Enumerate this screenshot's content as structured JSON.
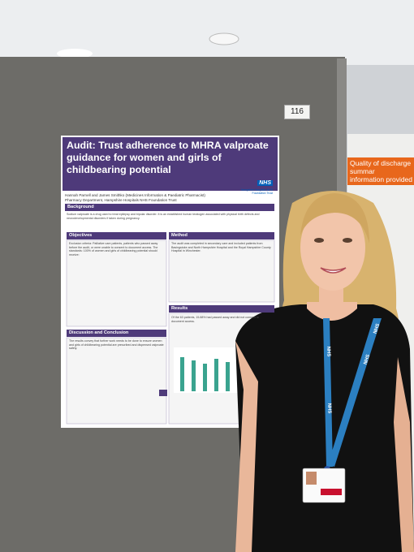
{
  "board_number": "116",
  "poster": {
    "title": "Audit: Trust adherence to MHRA valproate guidance for women and girls of childbearing potential",
    "authors": "Hannah Parnell and James Smithko (Medicines Information & Paediatric Pharmacist)",
    "affiliation": "Pharmacy Department, Hampshire Hospitals NHS Foundation Trust",
    "logo": {
      "mark": "NHS",
      "org": "Hampshire Hospitals NHS Foundation Trust"
    },
    "sections": [
      {
        "heading": "Background",
        "text": "Sodium valproate is a drug used to treat epilepsy and bipolar disorder. It is an established human teratogen associated with physical birth defects and neurodevelopmental disorders if taken during pregnancy."
      },
      {
        "heading": "Objectives",
        "text": "Exclusion criteria: Palliative care patients, patients who passed away before the audit, or were unable to consent to document access. The standards: 100% of women and girls of childbearing potential should receive:"
      },
      {
        "heading": "Method",
        "text": "The audit was completed in secondary care and included patients from Basingstoke and North Hampshire Hospital and the Royal Hampshire County Hospital in Winchester."
      },
      {
        "heading": "Results",
        "text": "Of the 63 patients, 15.88% had passed away and did not consent to document access."
      },
      {
        "heading": "Discussion and Conclusion",
        "text": "The results convey that further work needs to be done to ensure women and girls of childbearing potential are prescribed and dispensed valproate safely."
      }
    ]
  },
  "neighbour_poster": {
    "title": [
      "Quality of discharge summar",
      "information provided"
    ]
  },
  "lanyard": [
    "NHS",
    "NHS",
    "NHS",
    "NHS"
  ]
}
